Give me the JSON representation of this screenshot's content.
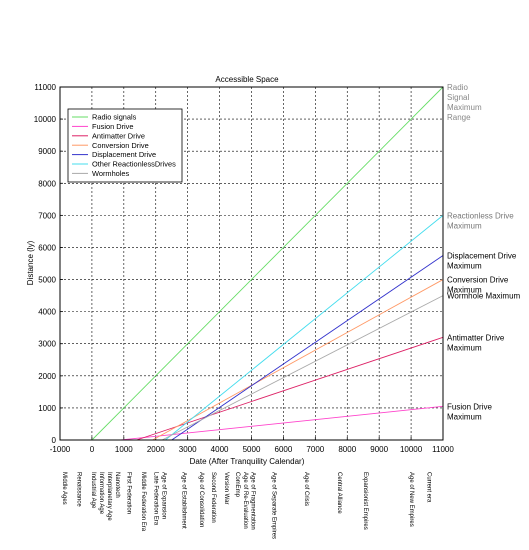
{
  "chart_data": {
    "type": "line",
    "title": "Accessible Space",
    "xlabel": "Date (After Tranquility Calendar)",
    "ylabel": "Distance (ly)",
    "xlim": [
      -1000,
      11000
    ],
    "ylim": [
      0,
      11000
    ],
    "xticks": [
      "-1000",
      "0",
      "1000",
      "2000",
      "3000",
      "4000",
      "5000",
      "6000",
      "7000",
      "8000",
      "9000",
      "10000",
      "11000"
    ],
    "yticks": [
      "0",
      "1000",
      "2000",
      "3000",
      "4000",
      "5000",
      "6000",
      "7000",
      "8000",
      "9000",
      "10000",
      "11000"
    ],
    "grid": true,
    "legend_position": "top-left",
    "series": [
      {
        "name": "Radio signals",
        "color": "#66dd66",
        "x": [
          0,
          11000
        ],
        "y": [
          0,
          11000
        ]
      },
      {
        "name": "Fusion Drive",
        "color": "#ff44cc",
        "x": [
          900,
          11000
        ],
        "y": [
          0,
          1050
        ]
      },
      {
        "name": "Antimatter Drive",
        "color": "#dd2266",
        "x": [
          1400,
          11000
        ],
        "y": [
          0,
          3200
        ]
      },
      {
        "name": "Conversion Drive",
        "color": "#ff9966",
        "x": [
          1900,
          11000
        ],
        "y": [
          0,
          5000
        ]
      },
      {
        "name": "Displacement Drive",
        "color": "#3333cc",
        "x": [
          2500,
          11000
        ],
        "y": [
          0,
          5750
        ]
      },
      {
        "name": "Other ReactionlessDrives",
        "color": "#44ddee",
        "x": [
          2300,
          11000
        ],
        "y": [
          0,
          7000
        ]
      },
      {
        "name": "Wormholes",
        "color": "#aaaaaa",
        "x": [
          2200,
          11000
        ],
        "y": [
          0,
          4500
        ]
      }
    ],
    "end_labels": [
      {
        "lines": [
          "Radio",
          "Signal",
          "Maximum",
          "Range"
        ],
        "y": 11000,
        "color": "#888888"
      },
      {
        "lines": [
          "Reactionless Drive",
          "Maximum"
        ],
        "y": 7000,
        "color": "#777777"
      },
      {
        "lines": [
          "Displacement Drive",
          "Maximum"
        ],
        "y": 5750,
        "color": "#000000"
      },
      {
        "lines": [
          "Conversion Drive",
          "Maximum"
        ],
        "y": 5000,
        "color": "#000000"
      },
      {
        "lines": [
          "Wormhole Maximum"
        ],
        "y": 4500,
        "color": "#000000"
      },
      {
        "lines": [
          "Antimatter Drive",
          "Maximum"
        ],
        "y": 3200,
        "color": "#000000"
      },
      {
        "lines": [
          "Fusion Drive",
          "Maximum"
        ],
        "y": 1050,
        "color": "#000000"
      }
    ],
    "eras": [
      {
        "label": "Middle Ages",
        "x": -970
      },
      {
        "label": "Renaissance",
        "x": -520
      },
      {
        "label": "Industrial Age",
        "x": -60
      },
      {
        "label": "Information Age",
        "x": 190
      },
      {
        "label": "Interplanetary Age",
        "x": 440
      },
      {
        "label": "Nanotech",
        "x": 690
      },
      {
        "label": "First Federation",
        "x": 1060
      },
      {
        "label": "Middle Federation Era",
        "x": 1500
      },
      {
        "label": "Late Federation Era",
        "x": 1900
      },
      {
        "label": "Age of Expansion",
        "x": 2150
      },
      {
        "label": "Age of Establishment",
        "x": 2780
      },
      {
        "label": "Age of Consolidation",
        "x": 3330
      },
      {
        "label": "Second Federation",
        "x": 3700
      },
      {
        "label": "Version War",
        "x": 4100
      },
      {
        "label": "ComEmp",
        "x": 4450
      },
      {
        "label": "Age of Re-Evaluation",
        "x": 4710
      },
      {
        "label": "Age of Fragmentation",
        "x": 4930
      },
      {
        "label": "Age of Separate Empires",
        "x": 5600
      },
      {
        "label": "Age of Crisis",
        "x": 6620
      },
      {
        "label": "Central Alliance",
        "x": 7650
      },
      {
        "label": "Expansionist Empires",
        "x": 8460
      },
      {
        "label": "Age of New Empires",
        "x": 9900
      },
      {
        "label": "Current era",
        "x": 10450
      }
    ]
  }
}
